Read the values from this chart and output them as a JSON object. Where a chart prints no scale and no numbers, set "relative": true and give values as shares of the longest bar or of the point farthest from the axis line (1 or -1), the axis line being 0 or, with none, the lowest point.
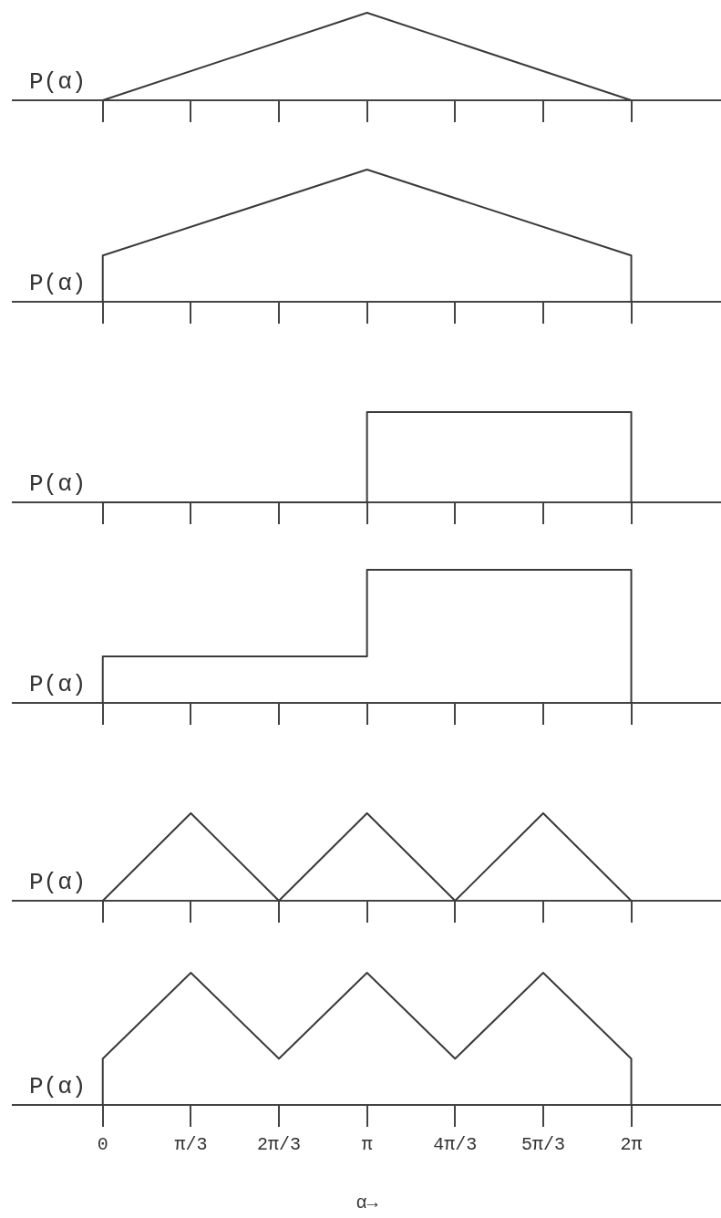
{
  "chart_data": [
    {
      "type": "line",
      "ylabel": "P(α)",
      "x": [
        0,
        3.1416,
        6.2832
      ],
      "values": [
        0,
        1,
        0
      ],
      "color": "#3a3a3a",
      "relative": true,
      "xlim": [
        -1.07,
        7.35
      ],
      "xticks": [
        {
          "value": 0,
          "label": null
        },
        {
          "value": 1.0472,
          "label": null
        },
        {
          "value": 2.0944,
          "label": null
        },
        {
          "value": 3.1416,
          "label": null
        },
        {
          "value": 4.1888,
          "label": null
        },
        {
          "value": 5.236,
          "label": null
        },
        {
          "value": 6.2832,
          "label": null
        }
      ],
      "tick_labels": false
    },
    {
      "type": "line",
      "ylabel": "P(α)",
      "x": [
        0,
        0,
        3.1416,
        6.2832,
        6.2832
      ],
      "values": [
        0,
        0.35,
        1,
        0.35,
        0
      ],
      "color": "#3a3a3a",
      "relative": true,
      "xlim": [
        -1.07,
        7.35
      ],
      "xticks": [
        {
          "value": 0,
          "label": null
        },
        {
          "value": 1.0472,
          "label": null
        },
        {
          "value": 2.0944,
          "label": null
        },
        {
          "value": 3.1416,
          "label": null
        },
        {
          "value": 4.1888,
          "label": null
        },
        {
          "value": 5.236,
          "label": null
        },
        {
          "value": 6.2832,
          "label": null
        }
      ],
      "tick_labels": false
    },
    {
      "type": "line",
      "ylabel": "P(α)",
      "x": [
        0,
        3.1416,
        3.1416,
        6.2832,
        6.2832
      ],
      "values": [
        0,
        0,
        1,
        1,
        0
      ],
      "color": "#3a3a3a",
      "relative": true,
      "xlim": [
        -1.07,
        7.35
      ],
      "xticks": [
        {
          "value": 0,
          "label": null
        },
        {
          "value": 1.0472,
          "label": null
        },
        {
          "value": 2.0944,
          "label": null
        },
        {
          "value": 3.1416,
          "label": null
        },
        {
          "value": 4.1888,
          "label": null
        },
        {
          "value": 5.236,
          "label": null
        },
        {
          "value": 6.2832,
          "label": null
        }
      ],
      "tick_labels": false
    },
    {
      "type": "line",
      "ylabel": "P(α)",
      "x": [
        0,
        0,
        3.1416,
        3.1416,
        6.2832,
        6.2832
      ],
      "values": [
        0,
        0.35,
        0.35,
        1,
        1,
        0
      ],
      "color": "#3a3a3a",
      "relative": true,
      "xlim": [
        -1.07,
        7.35
      ],
      "xticks": [
        {
          "value": 0,
          "label": null
        },
        {
          "value": 1.0472,
          "label": null
        },
        {
          "value": 2.0944,
          "label": null
        },
        {
          "value": 3.1416,
          "label": null
        },
        {
          "value": 4.1888,
          "label": null
        },
        {
          "value": 5.236,
          "label": null
        },
        {
          "value": 6.2832,
          "label": null
        }
      ],
      "tick_labels": false
    },
    {
      "type": "line",
      "ylabel": "P(α)",
      "x": [
        0,
        1.0472,
        2.0944,
        3.1416,
        4.1888,
        5.236,
        6.2832
      ],
      "values": [
        0,
        1,
        0,
        1,
        0,
        1,
        0
      ],
      "color": "#3a3a3a",
      "relative": true,
      "xlim": [
        -1.07,
        7.35
      ],
      "xticks": [
        {
          "value": 0,
          "label": null
        },
        {
          "value": 1.0472,
          "label": null
        },
        {
          "value": 2.0944,
          "label": null
        },
        {
          "value": 3.1416,
          "label": null
        },
        {
          "value": 4.1888,
          "label": null
        },
        {
          "value": 5.236,
          "label": null
        },
        {
          "value": 6.2832,
          "label": null
        }
      ],
      "tick_labels": false
    },
    {
      "type": "line",
      "ylabel": "P(α)",
      "xlabel": "α→",
      "x": [
        0,
        0,
        1.0472,
        2.0944,
        3.1416,
        4.1888,
        5.236,
        6.2832,
        6.2832
      ],
      "values": [
        0,
        0.35,
        1,
        0.35,
        1,
        0.35,
        1,
        0.35,
        0
      ],
      "color": "#3a3a3a",
      "relative": true,
      "xlim": [
        -1.07,
        7.35
      ],
      "xticks": [
        0,
        {
          "value": 1.0472,
          "label": "π/3"
        },
        {
          "value": 2.0944,
          "label": "2π/3"
        },
        {
          "value": 3.1416,
          "label": "π"
        },
        {
          "value": 4.1888,
          "label": "4π/3"
        },
        {
          "value": 5.236,
          "label": "5π/3"
        },
        {
          "value": 6.2832,
          "label": "2π"
        }
      ],
      "tick_labels": "x"
    }
  ]
}
